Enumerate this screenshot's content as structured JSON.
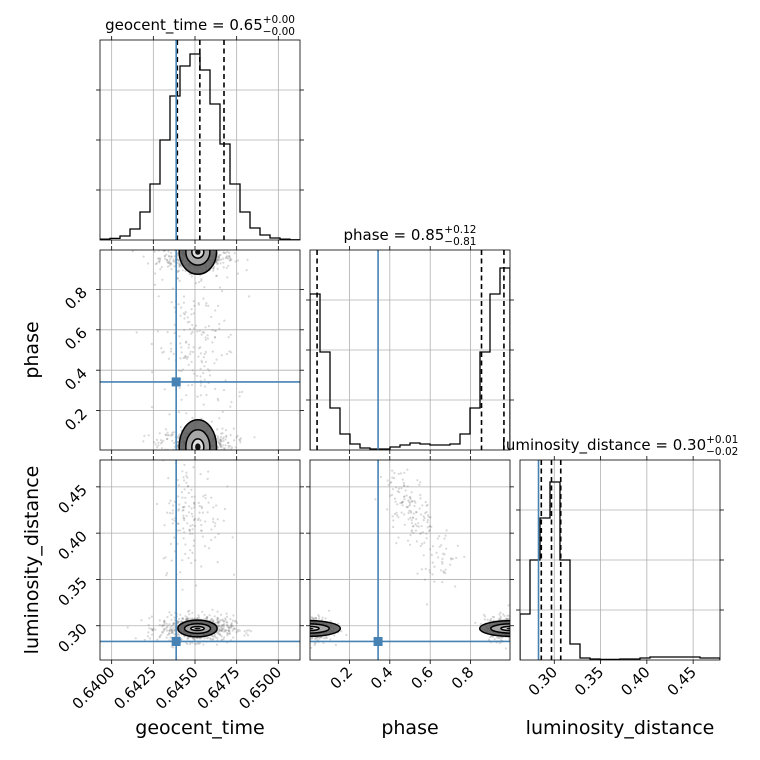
{
  "figure_type": "corner plot",
  "colors": {
    "truth": "#4682b4",
    "line": "#000000",
    "grid": "#b0b0b0",
    "points": "#7f7f7f"
  },
  "chart_data": [
    {
      "type": "histogram",
      "panel": "geocent_time marginal",
      "title": {
        "text": "geocent_time = 0.65",
        "sup": "+0.00",
        "sub": "−0.00"
      },
      "xlim": [
        0.6393,
        0.6513
      ],
      "bins": [
        0.6393,
        0.6399,
        0.6405,
        0.6411,
        0.6417,
        0.6423,
        0.6429,
        0.6435,
        0.6441,
        0.6447,
        0.6453,
        0.6459,
        0.6465,
        0.6471,
        0.6477,
        0.6483,
        0.6489,
        0.6495,
        0.6501,
        0.6507,
        0.6513
      ],
      "counts": [
        0.4,
        0.8,
        2.0,
        5.5,
        14.0,
        28.0,
        50.0,
        72.0,
        87.0,
        93.0,
        85.0,
        68.0,
        48.0,
        28.0,
        14.0,
        6.0,
        2.5,
        1.0,
        0.4,
        0.1
      ],
      "ymax": 100,
      "quantiles": [
        0.64394,
        0.64529,
        0.64674
      ],
      "truth": 0.64387
    },
    {
      "type": "histogram",
      "panel": "phase marginal",
      "title": {
        "text": "phase = 0.85",
        "sup": "+0.12",
        "sub": "−0.81"
      },
      "xlim": [
        0.005,
        0.995
      ],
      "bins": [
        0.005,
        0.0545,
        0.104,
        0.1535,
        0.203,
        0.2525,
        0.302,
        0.3515,
        0.401,
        0.4505,
        0.5,
        0.5495,
        0.599,
        0.6485,
        0.698,
        0.7475,
        0.797,
        0.8465,
        0.896,
        0.9455,
        0.995
      ],
      "counts": [
        78,
        49,
        21,
        8,
        3,
        1,
        0.5,
        0.5,
        1.5,
        2.5,
        3.5,
        3,
        2.5,
        2.5,
        3,
        8,
        21,
        49,
        78,
        91
      ],
      "ymax": 100,
      "quantiles": [
        0.04,
        0.854,
        0.965
      ],
      "truth": 0.342
    },
    {
      "type": "histogram",
      "panel": "luminosity_distance marginal",
      "title": {
        "text": "luminosity_distance = 0.30",
        "sup": "+0.01",
        "sub": "−0.02"
      },
      "xlim": [
        0.263,
        0.479
      ],
      "bins": [
        0.263,
        0.2738,
        0.2846,
        0.2954,
        0.3062,
        0.317,
        0.3278,
        0.3386,
        0.3494,
        0.3602,
        0.371,
        0.3818,
        0.3926,
        0.4034,
        0.4142,
        0.425,
        0.4358,
        0.4466,
        0.4574,
        0.4682,
        0.479
      ],
      "counts": [
        23,
        50,
        71,
        89,
        50,
        8,
        1,
        0.5,
        0.3,
        0.3,
        0.5,
        0.5,
        1,
        1.5,
        1.5,
        1.5,
        1.5,
        1.5,
        1,
        1
      ],
      "ymax": 100,
      "quantiles": [
        0.286,
        0.297,
        0.307
      ],
      "truth": 0.283
    },
    {
      "type": "scatter",
      "panel": "phase vs geocent_time",
      "xlim": [
        0.6393,
        0.6513
      ],
      "ylim": [
        0.005,
        0.995
      ],
      "truth": [
        0.64387,
        0.342
      ],
      "clusters": [
        {
          "cx": 0.6451,
          "cy": 0.955,
          "sx": 0.0011,
          "sy": 0.03,
          "n": 450
        },
        {
          "cx": 0.6451,
          "cy": 0.04,
          "sx": 0.0011,
          "sy": 0.035,
          "n": 400
        },
        {
          "cx": 0.6451,
          "cy": 0.5,
          "sx": 0.0012,
          "sy": 0.22,
          "n": 200
        }
      ],
      "contours": [
        {
          "cx": 0.64517,
          "cy": 0.985,
          "rx": [
            0.00036,
            0.00072,
            0.00112
          ],
          "ry": [
            0.03,
            0.065,
            0.11
          ]
        },
        {
          "cx": 0.64517,
          "cy": 0.02,
          "rx": [
            0.00036,
            0.00072,
            0.00112
          ],
          "ry": [
            0.04,
            0.085,
            0.135
          ]
        }
      ]
    },
    {
      "type": "scatter",
      "panel": "luminosity_distance vs geocent_time",
      "xlim": [
        0.6393,
        0.6513
      ],
      "ylim": [
        0.263,
        0.479
      ],
      "truth": [
        0.64387,
        0.283
      ],
      "clusters": [
        {
          "cx": 0.6451,
          "cy": 0.297,
          "sx": 0.0011,
          "sy": 0.007,
          "n": 700
        },
        {
          "cx": 0.6448,
          "cy": 0.42,
          "sx": 0.0009,
          "sy": 0.03,
          "n": 150
        }
      ],
      "contours": [
        {
          "cx": 0.64515,
          "cy": 0.297,
          "rx": [
            0.0004,
            0.00078,
            0.00118
          ],
          "ry": [
            0.0022,
            0.0052,
            0.009
          ]
        }
      ]
    },
    {
      "type": "scatter",
      "panel": "luminosity_distance vs phase",
      "xlim": [
        0.005,
        0.995
      ],
      "ylim": [
        0.263,
        0.479
      ],
      "truth": [
        0.342,
        0.283
      ],
      "clusters": [
        {
          "cx": 0.02,
          "cy": 0.297,
          "sx": 0.05,
          "sy": 0.007,
          "n": 350
        },
        {
          "cx": 0.97,
          "cy": 0.297,
          "sx": 0.05,
          "sy": 0.007,
          "n": 350
        },
        {
          "cx": 0.5,
          "cy": 0.425,
          "sx": 0.06,
          "sy": 0.02,
          "n": 140,
          "tilt": -0.17
        },
        {
          "cx": 0.65,
          "cy": 0.37,
          "sx": 0.05,
          "sy": 0.02,
          "n": 40
        }
      ],
      "contours": [
        {
          "cx": 0.0,
          "cy": 0.297,
          "rx": [
            0.05,
            0.1,
            0.155
          ],
          "ry": [
            0.0023,
            0.005,
            0.0085
          ]
        },
        {
          "cx": 1.0,
          "cy": 0.297,
          "rx": [
            0.05,
            0.1,
            0.155
          ],
          "ry": [
            0.0023,
            0.005,
            0.0085
          ]
        }
      ]
    }
  ],
  "axes": {
    "geocent_time": {
      "label": "geocent_time",
      "ticks": [
        0.64,
        0.6425,
        0.645,
        0.6475,
        0.65
      ],
      "tick_labels": [
        "0.6400",
        "0.6425",
        "0.6450",
        "0.6475",
        "0.6500"
      ]
    },
    "phase": {
      "label": "phase",
      "ticks": [
        0.2,
        0.4,
        0.6,
        0.8
      ],
      "tick_labels": [
        "0.2",
        "0.4",
        "0.6",
        "0.8"
      ]
    },
    "luminosity_distance": {
      "label": "luminosity_distance",
      "ticks": [
        0.3,
        0.35,
        0.4,
        0.45
      ],
      "tick_labels": [
        "0.30",
        "0.35",
        "0.40",
        "0.45"
      ]
    }
  }
}
